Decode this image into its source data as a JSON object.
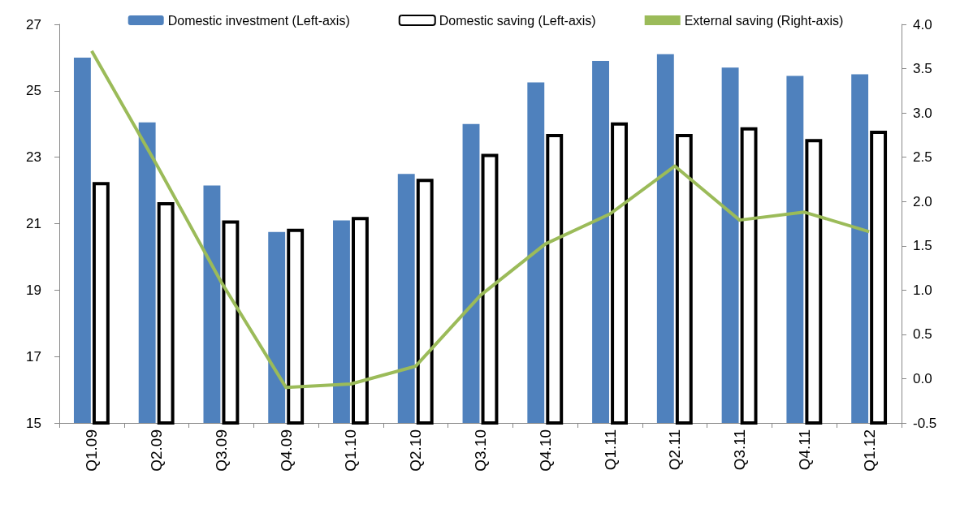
{
  "chart_data": {
    "type": "bar",
    "categories": [
      "Q1.09",
      "Q2.09",
      "Q3.09",
      "Q4.09",
      "Q1.10",
      "Q2.10",
      "Q3.10",
      "Q4.10",
      "Q1.11",
      "Q2.11",
      "Q3.11",
      "Q4.11",
      "Q1.12"
    ],
    "series": [
      {
        "name": "Domestic investment (Left-axis)",
        "color": "#4f81bd",
        "values": [
          26.0,
          24.05,
          22.15,
          20.75,
          21.1,
          22.5,
          24.0,
          25.25,
          25.9,
          26.1,
          25.7,
          25.45,
          25.5
        ]
      },
      {
        "name": "Domestic saving (Left-axis)",
        "color": "#ffffff",
        "values": [
          22.25,
          21.65,
          21.1,
          20.85,
          21.2,
          22.35,
          23.1,
          23.7,
          24.05,
          23.7,
          23.9,
          23.55,
          23.8
        ]
      },
      {
        "name": "External saving (Right-axis)",
        "type": "line",
        "axis": "y2",
        "color": "#9bbb59",
        "values": [
          3.7,
          2.42,
          1.09,
          -0.1,
          -0.06,
          0.14,
          0.94,
          1.52,
          1.86,
          2.4,
          1.79,
          1.88,
          1.66
        ]
      }
    ],
    "ylim": [
      15,
      27
    ],
    "yticks": [
      15,
      17,
      19,
      21,
      23,
      25,
      27
    ],
    "y2lim": [
      -0.5,
      4.0
    ],
    "y2ticks": [
      {
        "value": -0.5,
        "label": "-0.5"
      },
      {
        "value": 0,
        "label": "0.0"
      },
      {
        "value": 0.5,
        "label": "0.5"
      },
      {
        "value": 1,
        "label": "1.0"
      },
      {
        "value": 1.5,
        "label": "1.5"
      },
      {
        "value": 2,
        "label": "2.0"
      },
      {
        "value": 2.5,
        "label": "2.5"
      },
      {
        "value": 3,
        "label": "3.0"
      },
      {
        "value": 3.5,
        "label": "3.5"
      },
      {
        "value": 4,
        "label": "4.0"
      }
    ],
    "grid": false,
    "legend": "top",
    "marker": "none",
    "line_style": "solid"
  }
}
